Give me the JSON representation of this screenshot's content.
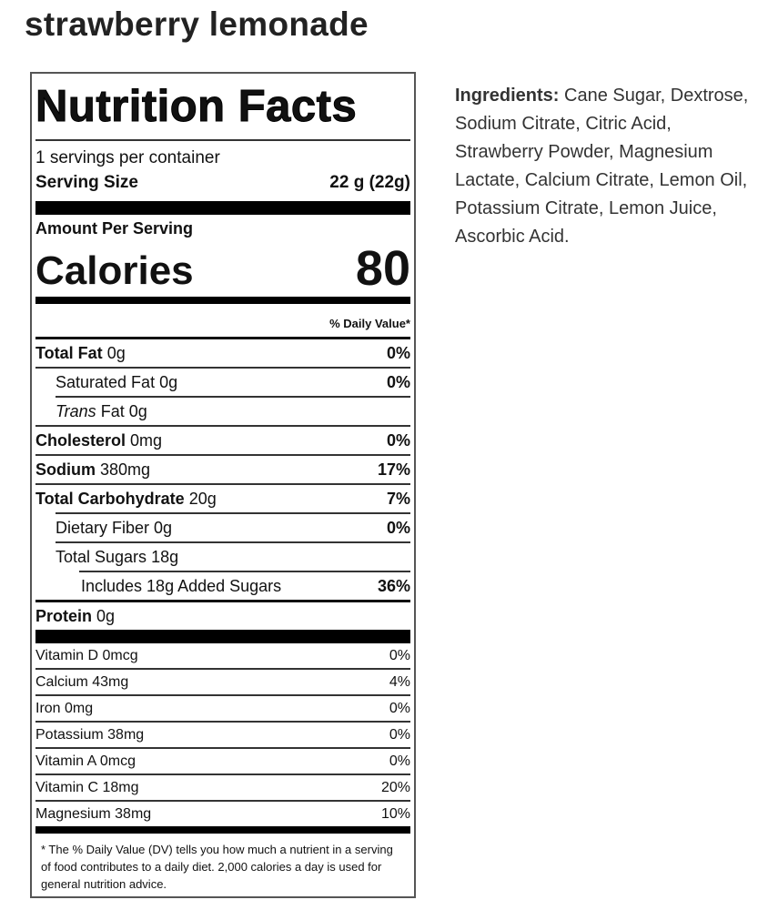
{
  "product_title": "strawberry lemonade",
  "label": {
    "heading": "Nutrition Facts",
    "servings_per_container": "1 servings per container",
    "serving_size_label": "Serving Size",
    "serving_size_value": "22 g (22g)",
    "amount_per_serving": "Amount Per Serving",
    "calories_label": "Calories",
    "calories_value": "80",
    "daily_value_header": "% Daily Value*",
    "nutrients": [
      {
        "name": "Total Fat",
        "amount": "0g",
        "dv": "0%"
      },
      {
        "name": "Saturated Fat",
        "amount": "0g",
        "dv": "0%"
      },
      {
        "name": "Trans",
        "name_suffix": "Fat",
        "amount": "0g",
        "dv": ""
      },
      {
        "name": "Cholesterol",
        "amount": "0mg",
        "dv": "0%"
      },
      {
        "name": "Sodium",
        "amount": "380mg",
        "dv": "17%"
      },
      {
        "name": "Total Carbohydrate",
        "amount": "20g",
        "dv": "7%"
      },
      {
        "name": "Dietary Fiber",
        "amount": "0g",
        "dv": "0%"
      },
      {
        "name": "Total Sugars",
        "amount": "18g",
        "dv": ""
      },
      {
        "name": "Includes 18g Added Sugars",
        "amount": "",
        "dv": "36%"
      },
      {
        "name": "Protein",
        "amount": "0g",
        "dv": ""
      }
    ],
    "vitamins": [
      {
        "text": "Vitamin D 0mcg",
        "dv": "0%"
      },
      {
        "text": "Calcium 43mg",
        "dv": "4%"
      },
      {
        "text": "Iron 0mg",
        "dv": "0%"
      },
      {
        "text": "Potassium 38mg",
        "dv": "0%"
      },
      {
        "text": "Vitamin A 0mcg",
        "dv": "0%"
      },
      {
        "text": "Vitamin C 18mg",
        "dv": "20%"
      },
      {
        "text": "Magnesium 38mg",
        "dv": "10%"
      }
    ],
    "footnote": "* The % Daily Value (DV) tells you how much a nutrient in a serving of food contributes to a daily diet. 2,000 calories a day is used for general nutrition advice."
  },
  "ingredients": {
    "label": "Ingredients:",
    "text": " Cane Sugar, Dextrose, Sodium Citrate, Citric Acid, Strawberry Powder, Magnesium Lactate, Calcium Citrate, Lemon Oil, Potassium Citrate, Lemon Juice, Ascorbic Acid."
  }
}
